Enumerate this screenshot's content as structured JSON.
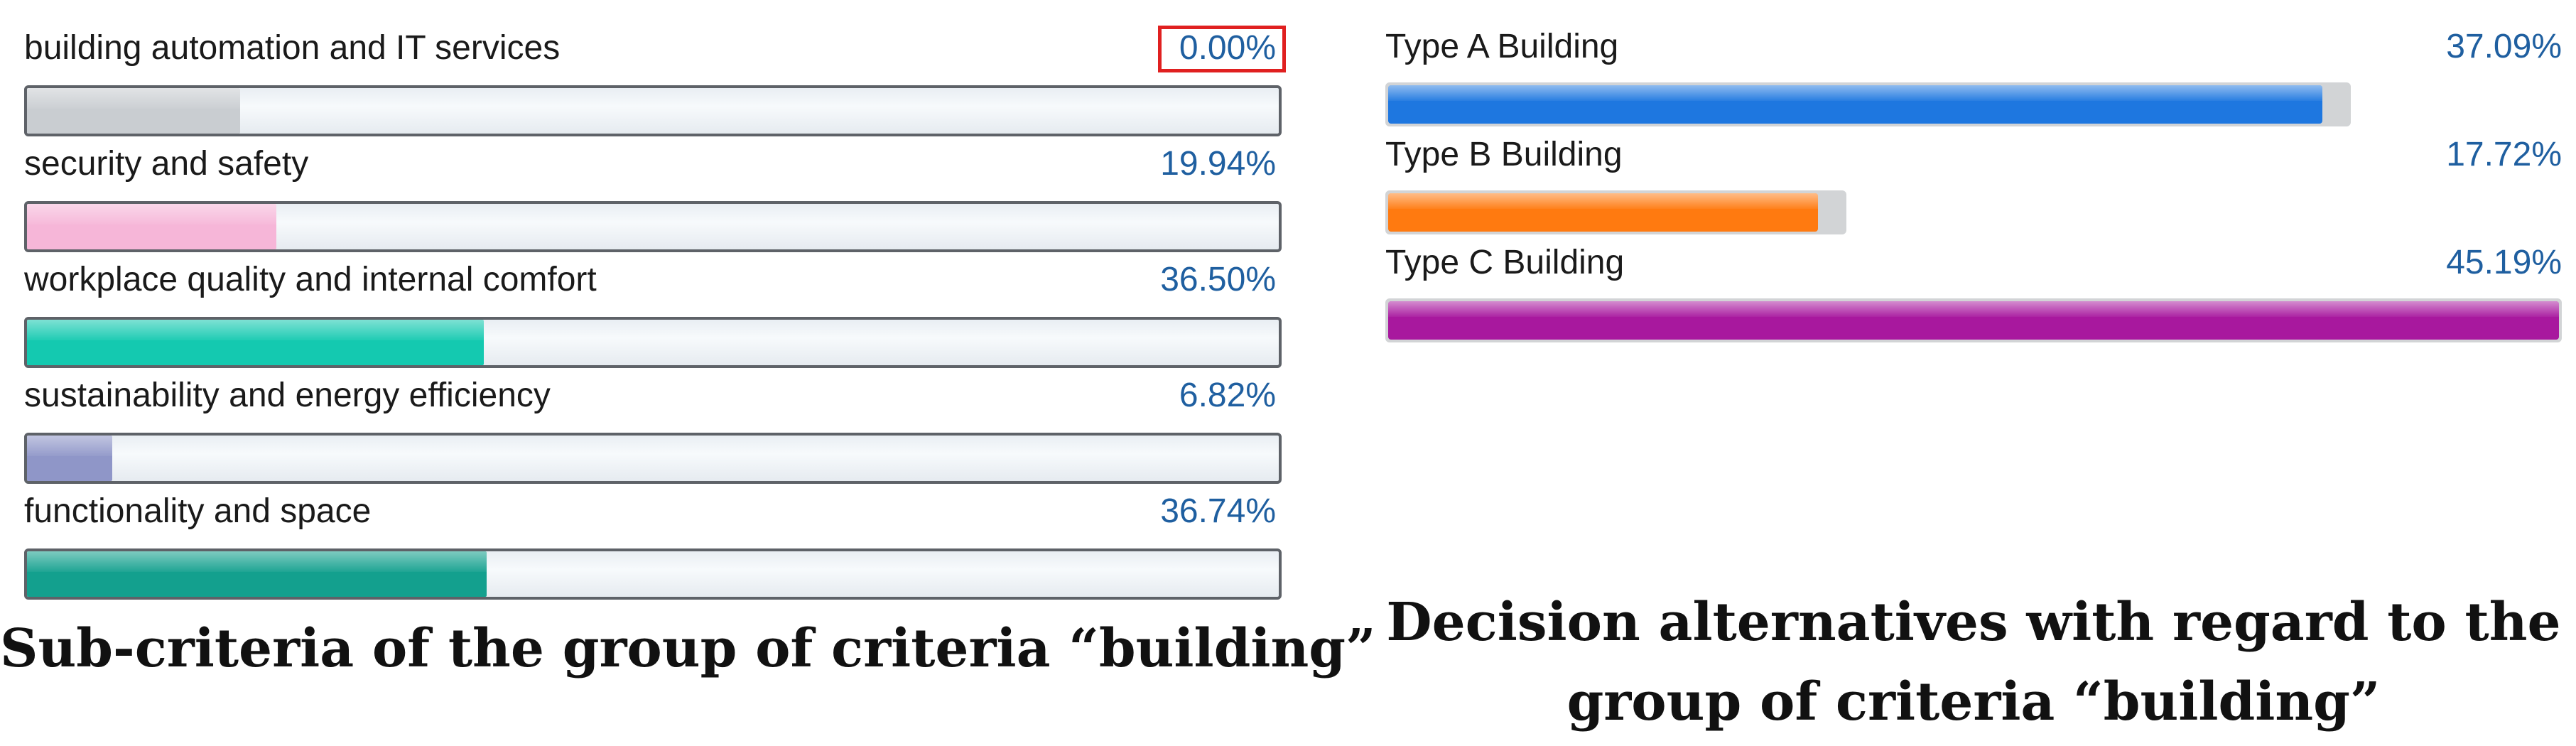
{
  "left_panel": {
    "caption": "Sub-criteria of the group of criteria “building”",
    "highlighted_index": 0
  },
  "right_panel": {
    "caption_line1": "Decision alternatives with regard to the",
    "caption_line2": "group of criteria “building”"
  },
  "chart_data": [
    {
      "type": "bar",
      "orientation": "horizontal",
      "categories": [
        "building automation and IT services",
        "security and safety",
        "workplace quality and internal comfort",
        "sustainability and energy efficiency",
        "functionality and space"
      ],
      "value_labels": [
        "0.00%",
        "19.94%",
        "36.50%",
        "6.82%",
        "36.74%"
      ],
      "values": [
        0.0,
        19.94,
        36.5,
        6.82,
        36.74
      ],
      "colors": [
        "#c9cdd1",
        "#f6b6d8",
        "#14c9b0",
        "#8f96c8",
        "#13a08e"
      ],
      "xlim": [
        0,
        100
      ],
      "title": "Sub-criteria of the group of criteria “building”"
    },
    {
      "type": "bar",
      "orientation": "horizontal",
      "categories": [
        "Type A Building",
        "Type B Building",
        "Type C Building"
      ],
      "value_labels": [
        "37.09%",
        "17.72%",
        "45.19%"
      ],
      "values": [
        37.09,
        17.72,
        45.19
      ],
      "colors": [
        "#1e77e0",
        "#ff7a10",
        "#a8189e"
      ],
      "xlim": [
        0,
        45.19
      ],
      "title": "Decision alternatives with regard to the group of criteria “building”"
    }
  ]
}
